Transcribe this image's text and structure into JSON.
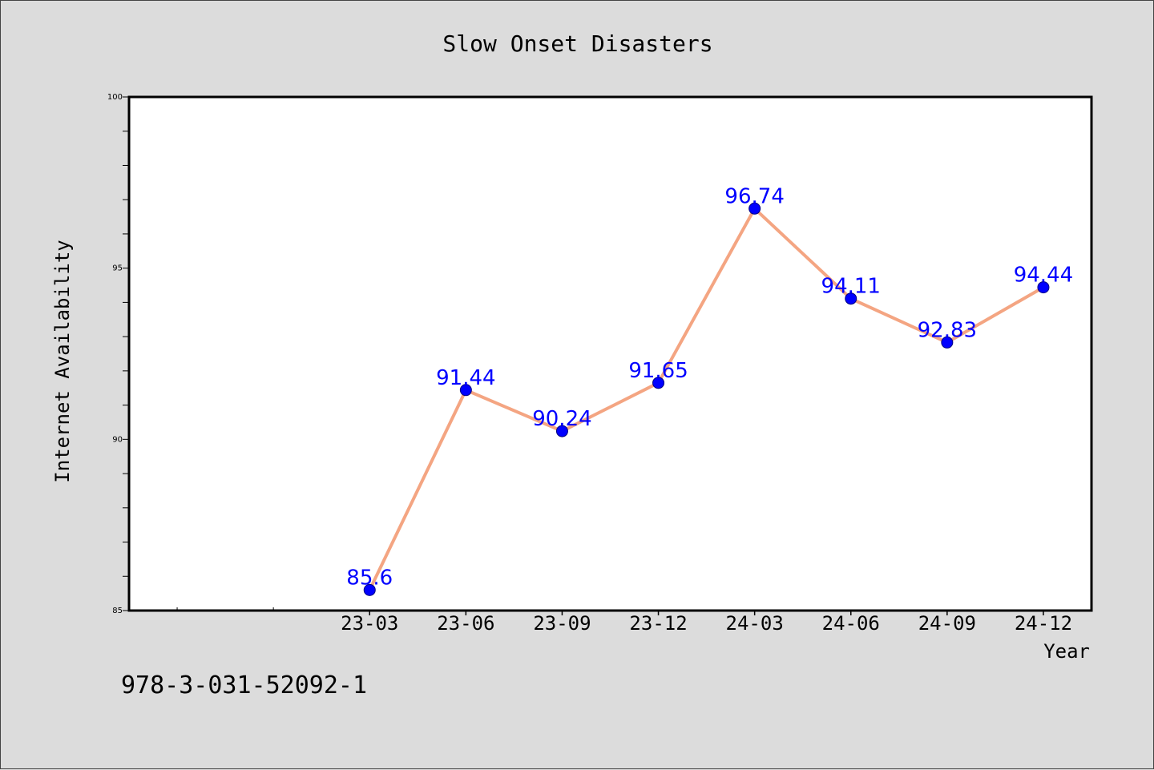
{
  "chart_data": {
    "type": "line",
    "title": "Slow Onset Disasters",
    "xlabel": "Year",
    "ylabel": "Internet Availability",
    "categories": [
      "23-03",
      "23-06",
      "23-09",
      "23-12",
      "24-03",
      "24-06",
      "24-09",
      "24-12"
    ],
    "series": [
      {
        "values": [
          85.6,
          91.44,
          90.24,
          91.65,
          96.74,
          94.11,
          92.83,
          94.44
        ],
        "labels": [
          "85.6",
          "91.44",
          "90.24",
          "91.65",
          "96.74",
          "94.11",
          "92.83",
          "94.44"
        ],
        "line_color": "#f4a582",
        "marker_color": "#0000ff"
      }
    ],
    "ylim": [
      85,
      100
    ],
    "yticks": [
      "85",
      "90",
      "95",
      "100"
    ],
    "grid": false,
    "legend": "none"
  },
  "footer": {
    "text": "978-3-031-52092-1"
  }
}
